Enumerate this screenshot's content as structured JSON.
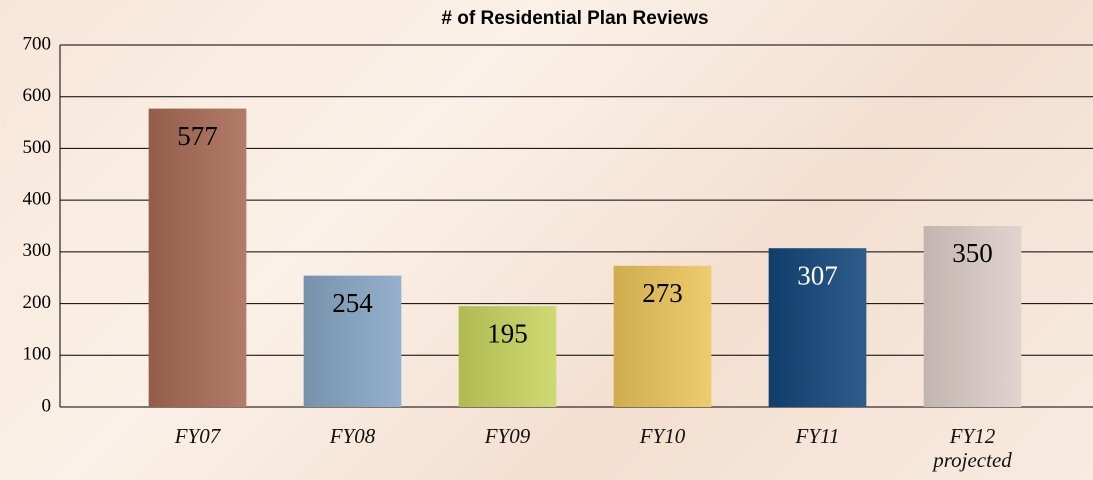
{
  "chart_data": {
    "type": "bar",
    "title": "# of Residential Plan Reviews",
    "categories": [
      "FY07",
      "FY08",
      "FY09",
      "FY10",
      "FY11",
      "FY12\nprojected"
    ],
    "values": [
      577,
      254,
      195,
      273,
      307,
      350
    ],
    "colors": [
      "#a86a55",
      "#86a6c4",
      "#c8d45e",
      "#ecc458",
      "#12467a",
      "#ddcdc8"
    ],
    "ylim": [
      0,
      700
    ],
    "yticks": [
      0,
      100,
      200,
      300,
      400,
      500,
      600,
      700
    ],
    "grid": true,
    "data_labels": true
  }
}
